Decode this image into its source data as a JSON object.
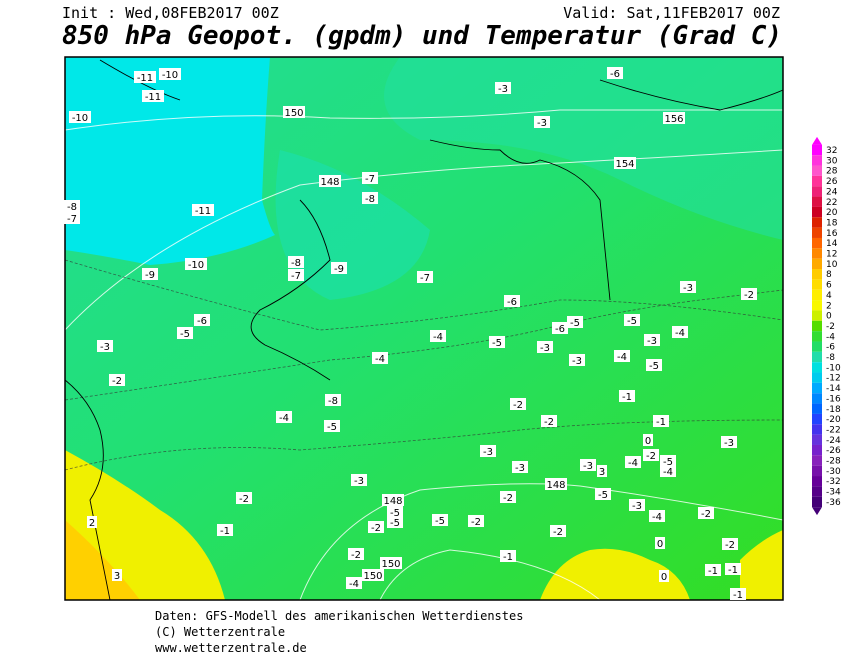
{
  "header": {
    "init": "Init : Wed,08FEB2017 00Z",
    "valid": "Valid: Sat,11FEB2017 00Z",
    "title": "850 hPa Geopot. (gpdm) und Temperatur (Grad C)"
  },
  "colorbar": {
    "labels": [
      "32",
      "30",
      "28",
      "26",
      "24",
      "22",
      "20",
      "18",
      "16",
      "14",
      "12",
      "10",
      "8",
      "6",
      "4",
      "2",
      "0",
      "-2",
      "-4",
      "-6",
      "-8",
      "-10",
      "-12",
      "-14",
      "-16",
      "-18",
      "-20",
      "-22",
      "-24",
      "-26",
      "-28",
      "-30",
      "-32",
      "-34",
      "-36"
    ]
  },
  "map": {
    "labels": [
      "-11",
      "-10",
      "-11",
      "-10",
      "150",
      "-3",
      "-6",
      "-3",
      "156",
      "154",
      "-8",
      "-7",
      "-11",
      "148",
      "-7",
      "-8",
      "-8",
      "-7",
      "-9",
      "-10",
      "-9",
      "-7",
      "-6",
      "-3",
      "-2",
      "-6",
      "-5",
      "-4",
      "-5",
      "-6",
      "-5",
      "-3",
      "-5",
      "-4",
      "-3",
      "-3",
      "-4",
      "-3",
      "-4",
      "-5",
      "-2",
      "-8",
      "-1",
      "-2",
      "-4",
      "-5",
      "-2",
      "-1",
      "0",
      "-3",
      "-3",
      "-2",
      "-4",
      "-5",
      "-3",
      "-3",
      "-4",
      "3",
      "-5",
      "148",
      "-3",
      "-2",
      "-2",
      "148",
      "-5",
      "-5",
      "-5",
      "-2",
      "-3",
      "-4",
      "-2",
      "-1",
      "-2",
      "-2",
      "2",
      "0",
      "-2",
      "-2",
      "150",
      "-1",
      "-1",
      "-1",
      "150",
      "-4",
      "0",
      "3",
      "-1"
    ]
  },
  "footer": {
    "lines": [
      "Daten: GFS-Modell des amerikanischen Wetterdienstes",
      "(C) Wetterzentrale",
      "www.wetterzentrale.de"
    ]
  }
}
